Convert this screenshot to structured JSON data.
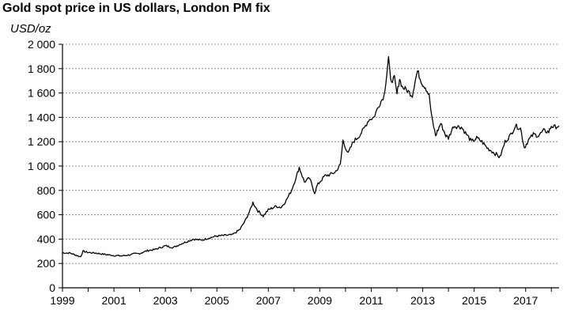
{
  "chart_data": {
    "type": "line",
    "title": "Gold spot price in US dollars, London PM fix",
    "ylabel": "USD/oz",
    "xlabel": "",
    "xlim": [
      1999.0,
      2018.3
    ],
    "ylim": [
      0,
      2000
    ],
    "grid": true,
    "legend": "none",
    "line_color": "#000000",
    "yticks": [
      0,
      200,
      400,
      600,
      800,
      1000,
      1200,
      1400,
      1600,
      1800,
      2000
    ],
    "ytick_labels": [
      "0",
      "200",
      "400",
      "600",
      "800",
      "1 000",
      "1 200",
      "1 400",
      "1 600",
      "1 800",
      "2 000"
    ],
    "xticks": [
      1999,
      2001,
      2003,
      2005,
      2007,
      2009,
      2011,
      2013,
      2015,
      2017
    ],
    "xtick_labels": [
      "1999",
      "2001",
      "2003",
      "2005",
      "2007",
      "2009",
      "2011",
      "2013",
      "2015",
      "2017"
    ],
    "series": [
      {
        "x": [
          1999.0,
          1999.3,
          1999.6,
          1999.7,
          1999.8,
          1999.9,
          2000.0,
          2000.3,
          2000.6,
          2001.0,
          2001.3,
          2001.6,
          2001.8,
          2002.0,
          2002.3,
          2002.6,
          2003.0,
          2003.3,
          2003.6,
          2003.9,
          2004.1,
          2004.4,
          2004.7,
          2005.0,
          2005.3,
          2005.6,
          2005.9,
          2006.1,
          2006.3,
          2006.4,
          2006.6,
          2006.8,
          2007.0,
          2007.3,
          2007.5,
          2007.7,
          2007.9,
          2008.1,
          2008.2,
          2008.4,
          2008.6,
          2008.8,
          2008.9,
          2009.0,
          2009.2,
          2009.4,
          2009.6,
          2009.8,
          2009.9,
          2010.1,
          2010.3,
          2010.5,
          2010.7,
          2010.9,
          2011.1,
          2011.3,
          2011.5,
          2011.6,
          2011.67,
          2011.75,
          2011.9,
          2012.0,
          2012.1,
          2012.2,
          2012.4,
          2012.6,
          2012.7,
          2012.8,
          2012.9,
          2013.0,
          2013.1,
          2013.25,
          2013.35,
          2013.5,
          2013.6,
          2013.7,
          2013.9,
          2014.0,
          2014.2,
          2014.5,
          2014.7,
          2014.9,
          2015.1,
          2015.3,
          2015.5,
          2015.7,
          2015.9,
          2016.0,
          2016.2,
          2016.4,
          2016.6,
          2016.8,
          2016.95,
          2017.1,
          2017.3,
          2017.5,
          2017.7,
          2017.9,
          2018.0,
          2018.1,
          2018.3
        ],
        "y": [
          287,
          285,
          262,
          255,
          300,
          295,
          290,
          285,
          276,
          265,
          262,
          270,
          279,
          282,
          305,
          315,
          345,
          330,
          360,
          385,
          400,
          390,
          410,
          425,
          430,
          435,
          480,
          550,
          640,
          700,
          630,
          590,
          640,
          670,
          660,
          720,
          800,
          920,
          990,
          870,
          900,
          780,
          840,
          870,
          920,
          930,
          950,
          1010,
          1210,
          1100,
          1200,
          1240,
          1300,
          1380,
          1400,
          1500,
          1580,
          1750,
          1890,
          1700,
          1720,
          1590,
          1720,
          1650,
          1620,
          1580,
          1700,
          1780,
          1720,
          1670,
          1650,
          1580,
          1400,
          1250,
          1300,
          1350,
          1250,
          1230,
          1330,
          1320,
          1260,
          1200,
          1230,
          1200,
          1150,
          1120,
          1090,
          1070,
          1200,
          1250,
          1330,
          1310,
          1150,
          1210,
          1260,
          1250,
          1290,
          1280,
          1330,
          1320,
          1330
        ]
      }
    ]
  }
}
